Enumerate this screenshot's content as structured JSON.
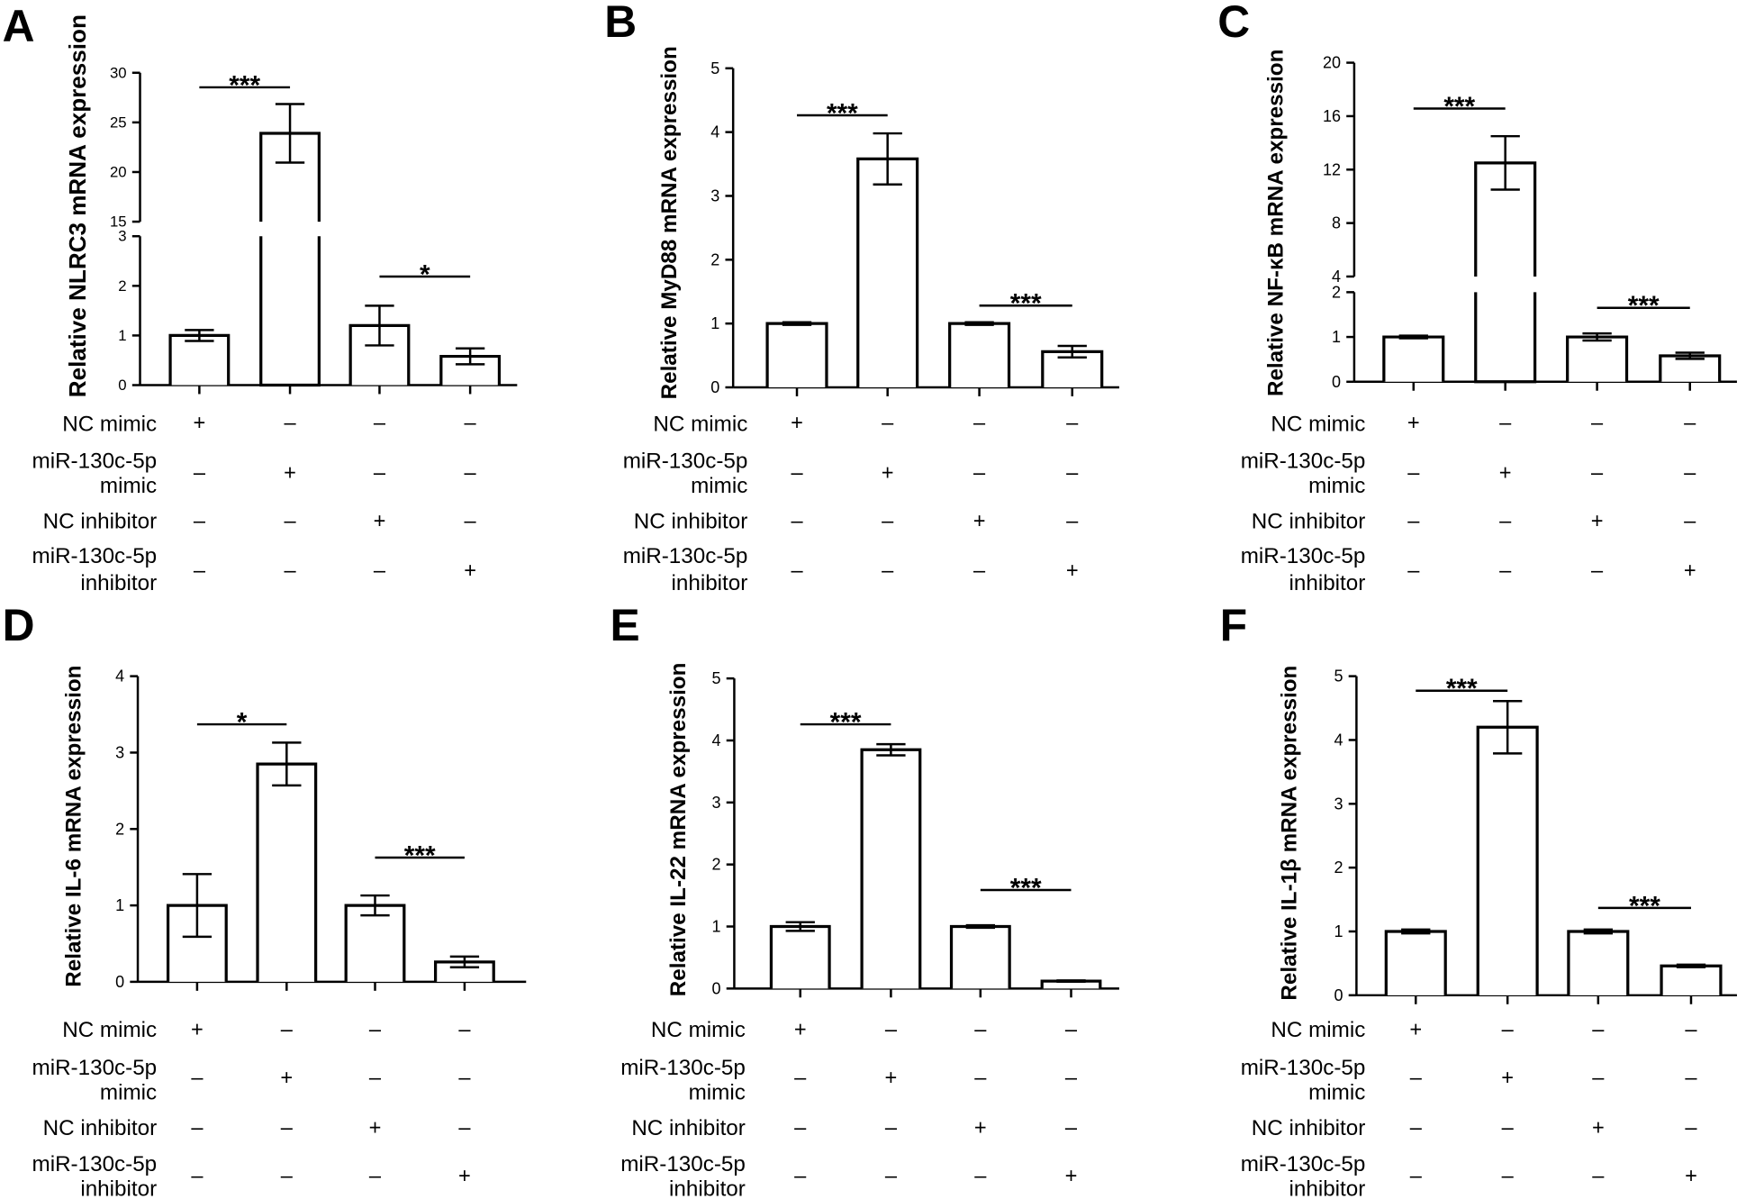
{
  "colors": {
    "background": "#ffffff",
    "ink": "#000000",
    "bar_fill": "#ffffff"
  },
  "treatments": [
    {
      "label": [
        "NC mimic"
      ],
      "signs": [
        "+",
        "–",
        "–",
        "–"
      ]
    },
    {
      "label": [
        "miR-130c-5p",
        "mimic"
      ],
      "signs": [
        "–",
        "+",
        "–",
        "–"
      ]
    },
    {
      "label": [
        "NC inhibitor"
      ],
      "signs": [
        "–",
        "–",
        "+",
        "–"
      ]
    },
    {
      "label": [
        "miR-130c-5p",
        "inhibitor"
      ],
      "signs": [
        "–",
        "–",
        "–",
        "+"
      ]
    }
  ],
  "chart_data": [
    {
      "panel": "A",
      "type": "bar",
      "ylabel": "Relative NLRC3 mRNA expression",
      "y_segments": [
        {
          "range": [
            0,
            3
          ],
          "ticks": [
            0,
            1,
            2,
            3
          ]
        },
        {
          "range": [
            15,
            30
          ],
          "ticks": [
            15,
            20,
            25,
            30
          ]
        }
      ],
      "values": [
        1.0,
        23.9,
        1.2,
        0.58
      ],
      "errors": [
        0.11,
        2.95,
        0.4,
        0.16
      ],
      "significance": [
        {
          "groups": [
            0,
            1
          ],
          "label": "***"
        },
        {
          "groups": [
            2,
            3
          ],
          "label": "*"
        }
      ]
    },
    {
      "panel": "B",
      "type": "bar",
      "ylabel": "Relative MyD88 mRNA expression",
      "y_segments": [
        {
          "range": [
            0,
            5
          ],
          "ticks": [
            0,
            1,
            2,
            3,
            4,
            5
          ]
        }
      ],
      "values": [
        1.0,
        3.58,
        1.0,
        0.56
      ],
      "errors": [
        0.02,
        0.4,
        0.02,
        0.09
      ],
      "significance": [
        {
          "groups": [
            0,
            1
          ],
          "label": "***"
        },
        {
          "groups": [
            2,
            3
          ],
          "label": "***"
        }
      ]
    },
    {
      "panel": "C",
      "type": "bar",
      "ylabel": "Relative NF-κB mRNA expression",
      "y_segments": [
        {
          "range": [
            0,
            2
          ],
          "ticks": [
            0,
            1,
            2
          ]
        },
        {
          "range": [
            4,
            20
          ],
          "ticks": [
            4,
            8,
            12,
            16,
            20
          ]
        }
      ],
      "values": [
        1.0,
        12.5,
        1.0,
        0.58
      ],
      "errors": [
        0.03,
        2.0,
        0.08,
        0.07
      ],
      "significance": [
        {
          "groups": [
            0,
            1
          ],
          "label": "***"
        },
        {
          "groups": [
            2,
            3
          ],
          "label": "***"
        }
      ]
    },
    {
      "panel": "D",
      "type": "bar",
      "ylabel": "Relative IL-6 mRNA expression",
      "y_segments": [
        {
          "range": [
            0,
            4
          ],
          "ticks": [
            0,
            1,
            2,
            3,
            4
          ]
        }
      ],
      "values": [
        1.0,
        2.85,
        1.0,
        0.26
      ],
      "errors": [
        0.41,
        0.28,
        0.13,
        0.07
      ],
      "significance": [
        {
          "groups": [
            0,
            1
          ],
          "label": "*"
        },
        {
          "groups": [
            2,
            3
          ],
          "label": "***"
        }
      ]
    },
    {
      "panel": "E",
      "type": "bar",
      "ylabel": "Relative IL-22 mRNA expression",
      "y_segments": [
        {
          "range": [
            0,
            5
          ],
          "ticks": [
            0,
            1,
            2,
            3,
            4,
            5
          ]
        }
      ],
      "values": [
        1.0,
        3.85,
        1.0,
        0.12
      ],
      "errors": [
        0.07,
        0.09,
        0.02,
        0.01
      ],
      "significance": [
        {
          "groups": [
            0,
            1
          ],
          "label": "***"
        },
        {
          "groups": [
            2,
            3
          ],
          "label": "***"
        }
      ]
    },
    {
      "panel": "F",
      "type": "bar",
      "ylabel": "Relative IL-1β mRNA expression",
      "y_segments": [
        {
          "range": [
            0,
            5
          ],
          "ticks": [
            0,
            1,
            2,
            3,
            4,
            5
          ]
        }
      ],
      "values": [
        1.0,
        4.2,
        1.0,
        0.46
      ],
      "errors": [
        0.03,
        0.41,
        0.03,
        0.02
      ],
      "significance": [
        {
          "groups": [
            0,
            1
          ],
          "label": "***"
        },
        {
          "groups": [
            2,
            3
          ],
          "label": "***"
        }
      ]
    }
  ]
}
